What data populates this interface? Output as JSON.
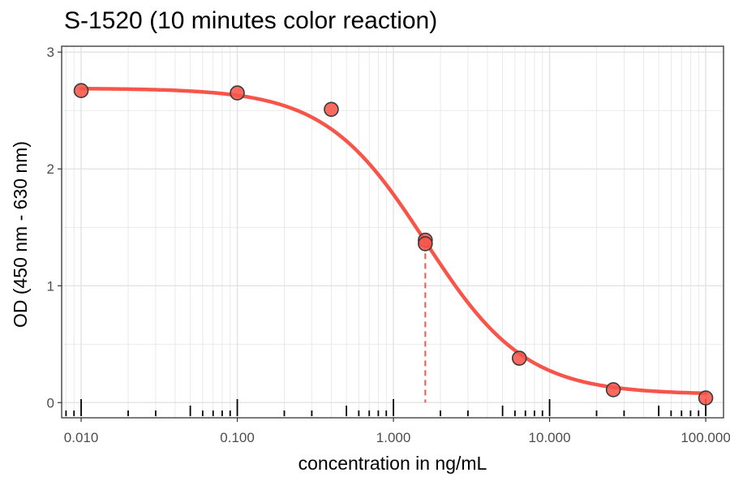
{
  "chart_data": {
    "type": "scatter",
    "title": "S-1520 (10 minutes color reaction)",
    "xlabel": "concentration in ng/mL",
    "ylabel": "OD (450 nm - 630 nm)",
    "x_scale": "log10",
    "xlim": [
      0.0075,
      130
    ],
    "ylim": [
      -0.13,
      3.05
    ],
    "x_ticks": [
      0.01,
      0.1,
      1,
      10,
      100
    ],
    "x_tick_labels": [
      "0.010",
      "0.100",
      "1.000",
      "10.000",
      "100.000"
    ],
    "y_ticks": [
      0,
      1,
      2,
      3
    ],
    "y_tick_labels": [
      "0",
      "1",
      "2",
      "3"
    ],
    "grid": true,
    "legend": "none",
    "points": [
      {
        "x": 0.01,
        "y": 2.67
      },
      {
        "x": 0.1,
        "y": 2.65
      },
      {
        "x": 0.4,
        "y": 2.51
      },
      {
        "x": 1.6,
        "y": 1.39
      },
      {
        "x": 1.6,
        "y": 1.36
      },
      {
        "x": 6.4,
        "y": 0.38
      },
      {
        "x": 25.6,
        "y": 0.11
      },
      {
        "x": 100,
        "y": 0.04
      }
    ],
    "fit_curve": {
      "model": "4PL",
      "top": 2.69,
      "bottom": 0.07,
      "ec50": 1.6,
      "hill": 1.35
    },
    "reference_line": {
      "x": 1.6,
      "y_from": 0,
      "y_to": 1.36,
      "style": "dashed"
    },
    "rug_marks": [
      0.008,
      0.009,
      0.01,
      0.02,
      0.03,
      0.05,
      0.06,
      0.07,
      0.08,
      0.09,
      0.1,
      0.2,
      0.3,
      0.5,
      0.6,
      0.7,
      0.8,
      0.9,
      1,
      2,
      3,
      5,
      6,
      7,
      8,
      9,
      10,
      20,
      30,
      50,
      60,
      70,
      80,
      90,
      100
    ],
    "colors": {
      "curve": "#f8554a",
      "point_fill": "#f8554a",
      "point_stroke": "#3b3b3b",
      "reference_line": "#f8554a",
      "grid": "#e4e4e4",
      "panel_border": "#333333"
    }
  }
}
